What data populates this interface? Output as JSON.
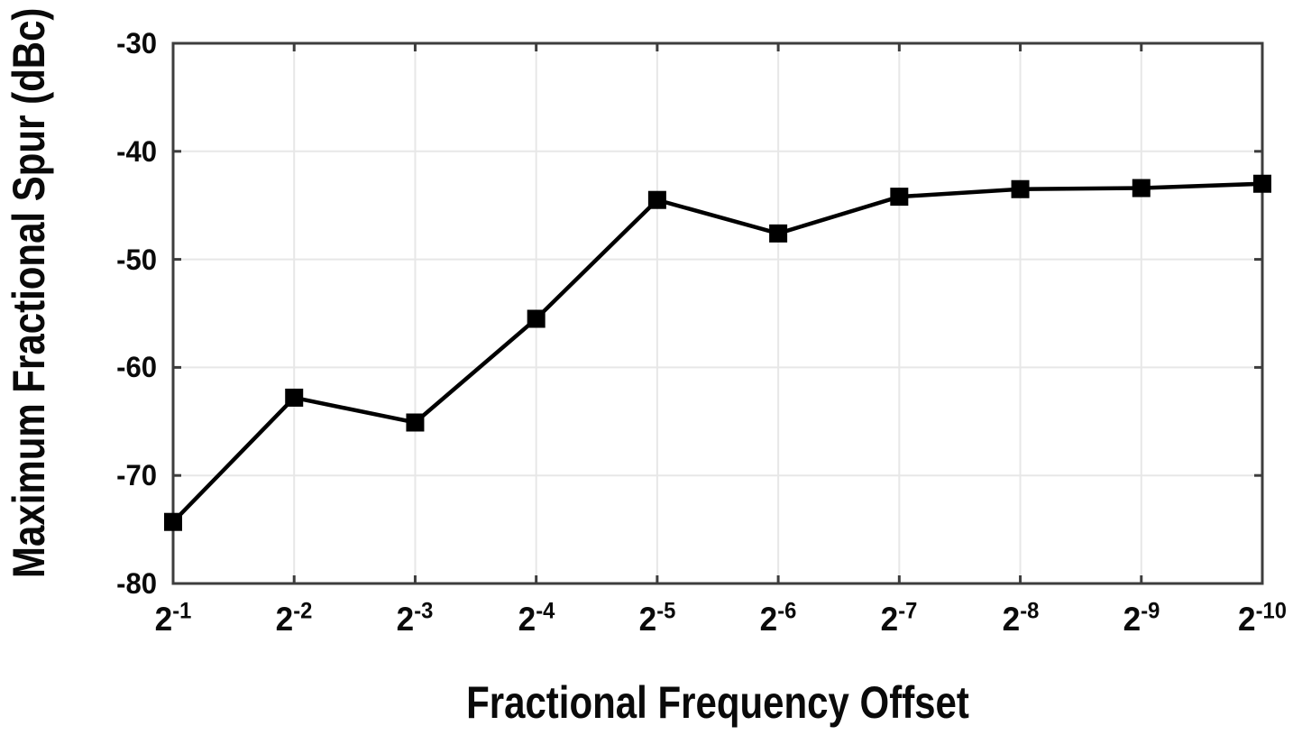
{
  "chart_data": {
    "type": "line",
    "title": "",
    "xlabel": "Fractional Frequency Offset",
    "ylabel": "Maximum Fractional Spur (dBc)",
    "categories": [
      "2^-1",
      "2^-2",
      "2^-3",
      "2^-4",
      "2^-5",
      "2^-6",
      "2^-7",
      "2^-8",
      "2^-9",
      "2^-10"
    ],
    "values": [
      -74.3,
      -62.8,
      -65.1,
      -55.5,
      -44.5,
      -47.6,
      -44.2,
      -43.5,
      -43.4,
      -43.0
    ],
    "series_name": "Maximum Fractional Spur",
    "ylim": [
      -80,
      -30
    ],
    "yticks": [
      -30,
      -40,
      -50,
      -60,
      -70,
      -80
    ],
    "grid": true,
    "legend_position": "none",
    "marker": "filled-square",
    "colors": {
      "line": "#000000",
      "marker": "#000000",
      "axis": "#3d3d3d",
      "grid": "#e7e7e7",
      "text": "#0a0a0a",
      "background": "#ffffff"
    }
  }
}
